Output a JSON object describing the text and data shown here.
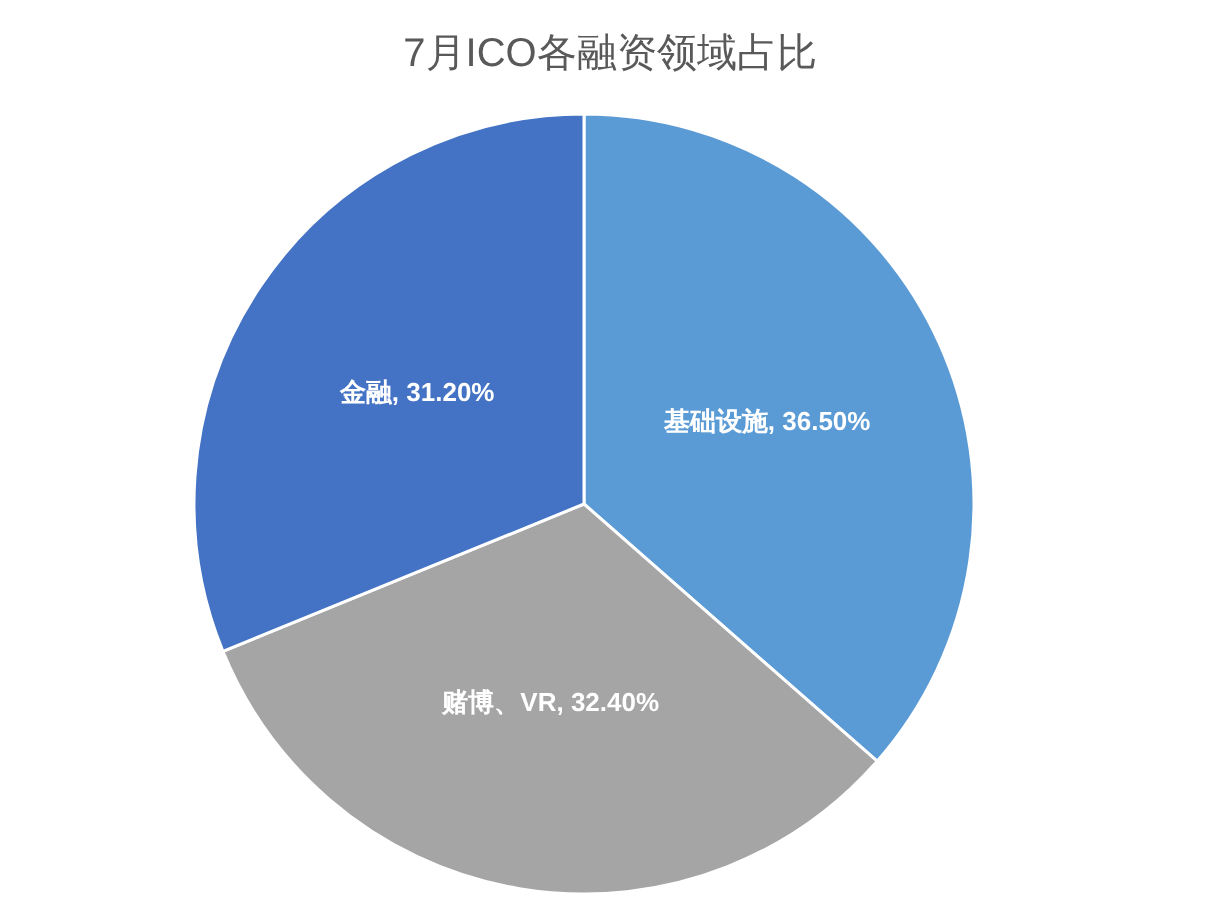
{
  "chart_data": {
    "type": "pie",
    "title": "7月ICO各融资领域占比",
    "categories": [
      "基础设施",
      "赌博、VR",
      "金融"
    ],
    "values": [
      36.5,
      32.4,
      31.2
    ],
    "value_labels": [
      "36.50%",
      "32.40%",
      "31.20%"
    ],
    "colors": [
      "#5b9bd5",
      "#a5a5a5",
      "#4472c4"
    ],
    "legend": false
  }
}
